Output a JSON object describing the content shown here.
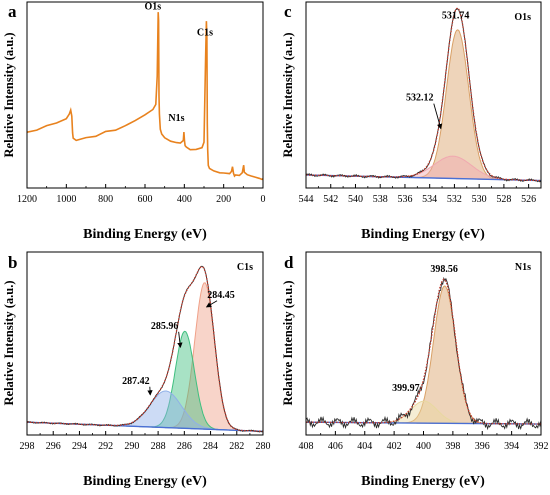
{
  "colors": {
    "survey": "#e8821e",
    "envelope": "#c0392b",
    "background": "#4a6fd4",
    "axis": "#000000"
  },
  "chart_data": [
    {
      "id": "a",
      "letter": "a",
      "type": "line",
      "xlabel": "Binding Energy (eV)",
      "ylabel": "Relative Intensity (a.u.)",
      "xlim": [
        1200,
        0
      ],
      "xticks": [
        1200,
        1000,
        800,
        600,
        400,
        200,
        0
      ],
      "ylim": [
        0,
        100
      ],
      "series": [
        {
          "kind": "survey",
          "color": "#e8821e",
          "x": [
            1200,
            1150,
            1100,
            1050,
            1000,
            985,
            978,
            972,
            968,
            965,
            950,
            900,
            850,
            800,
            750,
            700,
            650,
            600,
            560,
            545,
            538,
            533,
            531,
            529,
            527,
            522,
            515,
            500,
            470,
            440,
            420,
            405,
            402,
            399,
            396,
            390,
            370,
            340,
            310,
            300,
            292,
            288,
            285,
            283,
            281,
            278,
            272,
            250,
            220,
            200,
            170,
            160,
            155,
            150,
            145,
            140,
            120,
            105,
            100,
            98,
            95,
            80,
            60,
            40,
            20,
            5,
            0
          ],
          "y": [
            30,
            31,
            33,
            35,
            37,
            40,
            42,
            39,
            30,
            27,
            26,
            27,
            28,
            30,
            31,
            33,
            36,
            39,
            42,
            45,
            60,
            95,
            90,
            50,
            40,
            32,
            29,
            27,
            25,
            24,
            24,
            25,
            30,
            25,
            23,
            22,
            21,
            21,
            22,
            25,
            70,
            90,
            80,
            35,
            20,
            12,
            10,
            9,
            8,
            8,
            8,
            9,
            12,
            8,
            7,
            7,
            7,
            8,
            11,
            12,
            8,
            7,
            6,
            6,
            5,
            5,
            5
          ]
        }
      ],
      "annotations": [
        {
          "text": "O1s",
          "x": 560,
          "y": 96
        },
        {
          "text": "C1s",
          "x": 295,
          "y": 82
        },
        {
          "text": "N1s",
          "x": 440,
          "y": 36
        }
      ]
    },
    {
      "id": "c",
      "letter": "c",
      "type": "line",
      "xlabel": "Binding Energy (eV)",
      "ylabel": "Relative Intensity (a.u.)",
      "xlim": [
        544,
        525
      ],
      "xticks": [
        544,
        542,
        540,
        538,
        536,
        534,
        532,
        530,
        528,
        526
      ],
      "ylim": [
        0,
        100
      ],
      "corner_label": "O1s",
      "baseline": {
        "color": "#4a6fd4",
        "x": [
          544,
          525
        ],
        "y": [
          7,
          4
        ]
      },
      "components": [
        {
          "center": 531.74,
          "height": 80,
          "sigma": 0.9,
          "color": "#d9a066"
        },
        {
          "center": 532.12,
          "height": 12,
          "sigma": 1.5,
          "color": "#f0a8b0"
        }
      ],
      "envelope": {
        "color": "#c0392b",
        "noise": 0.8
      },
      "peak_labels": [
        {
          "text": "531.74",
          "x": 531.9,
          "y": 91
        },
        {
          "text": "532.12",
          "x": 534.8,
          "y": 47,
          "arrow_to": [
            533.1,
            32
          ]
        }
      ]
    },
    {
      "id": "b",
      "letter": "b",
      "type": "line",
      "xlabel": "Binding Energy (eV)",
      "ylabel": "Relative Intensity (a.u.)",
      "xlim": [
        298,
        280
      ],
      "xticks": [
        298,
        296,
        294,
        292,
        290,
        288,
        286,
        284,
        282,
        280
      ],
      "ylim": [
        0,
        100
      ],
      "corner_label": "C1s",
      "baseline": {
        "color": "#4a6fd4",
        "x": [
          298,
          280
        ],
        "y": [
          7,
          2
        ]
      },
      "components": [
        {
          "center": 284.45,
          "height": 80,
          "sigma": 0.75,
          "color": "#f0a088"
        },
        {
          "center": 285.96,
          "height": 53,
          "sigma": 0.72,
          "color": "#3fbf7f"
        },
        {
          "center": 287.42,
          "height": 20,
          "sigma": 1.2,
          "color": "#8fb0e8"
        }
      ],
      "envelope": {
        "color": "#c0392b",
        "noise": 0.5
      },
      "peak_labels": [
        {
          "text": "284.45",
          "x": 283.2,
          "y": 75,
          "arrow_to": [
            284.3,
            70
          ]
        },
        {
          "text": "285.96",
          "x": 287.5,
          "y": 58,
          "arrow_to": [
            286.3,
            48
          ]
        },
        {
          "text": "287.42",
          "x": 289.7,
          "y": 28,
          "arrow_to": [
            288.6,
            22
          ]
        }
      ]
    },
    {
      "id": "d",
      "letter": "d",
      "type": "line",
      "xlabel": "Binding Energy (eV)",
      "ylabel": "Relative Intensity (a.u.)",
      "xlim": [
        408,
        392
      ],
      "xticks": [
        408,
        406,
        404,
        402,
        400,
        398,
        396,
        394,
        392
      ],
      "ylim": [
        0,
        100
      ],
      "corner_label": "N1s",
      "baseline": {
        "color": "#4a6fd4",
        "x": [
          408,
          392
        ],
        "y": [
          7,
          6
        ]
      },
      "components": [
        {
          "center": 398.56,
          "height": 75,
          "sigma": 0.75,
          "color": "#d9a066"
        },
        {
          "center": 399.97,
          "height": 12,
          "sigma": 0.9,
          "color": "#e8d8a0"
        }
      ],
      "envelope": {
        "color": "#c0392b",
        "noise": 3.0
      },
      "peak_labels": [
        {
          "text": "398.56",
          "x": 398.6,
          "y": 89
        },
        {
          "text": "399.97",
          "x": 401.2,
          "y": 24
        }
      ]
    }
  ]
}
